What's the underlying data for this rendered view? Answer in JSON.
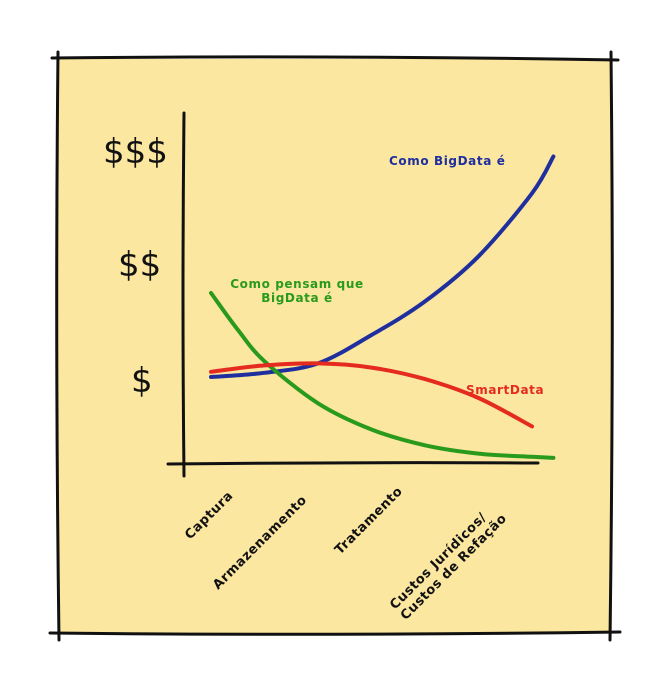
{
  "chart_data": {
    "type": "line",
    "y_tick_labels": [
      "$",
      "$$",
      "$$$"
    ],
    "categories": [
      "Captura",
      "Armazenamento",
      "Tratamento",
      [
        "Custos Jurídicos/",
        "Custos de Refação"
      ]
    ],
    "series": [
      {
        "name": "Como BigData é",
        "color": "#1f2f9e",
        "points": [
          [
            0.0,
            0.8
          ],
          [
            0.5,
            0.84
          ],
          [
            1.0,
            0.93
          ],
          [
            1.5,
            1.2
          ],
          [
            2.0,
            1.52
          ],
          [
            2.5,
            1.95
          ],
          [
            3.0,
            2.55
          ],
          [
            3.2,
            2.9
          ]
        ]
      },
      {
        "name": [
          "Como pensam que",
          "BigData é"
        ],
        "color": "#2a9a1c",
        "points": [
          [
            0.0,
            1.6
          ],
          [
            0.25,
            1.25
          ],
          [
            0.5,
            0.95
          ],
          [
            1.0,
            0.55
          ],
          [
            1.5,
            0.3
          ],
          [
            2.0,
            0.15
          ],
          [
            2.5,
            0.07
          ],
          [
            3.0,
            0.04
          ],
          [
            3.2,
            0.03
          ]
        ]
      },
      {
        "name": "SmartData",
        "color": "#e52a1f",
        "points": [
          [
            0.0,
            0.85
          ],
          [
            0.5,
            0.91
          ],
          [
            1.0,
            0.93
          ],
          [
            1.5,
            0.89
          ],
          [
            2.0,
            0.78
          ],
          [
            2.5,
            0.6
          ],
          [
            3.0,
            0.33
          ]
        ]
      }
    ],
    "colors": {
      "background": "#fbe7a0",
      "axis": "#111111"
    }
  }
}
